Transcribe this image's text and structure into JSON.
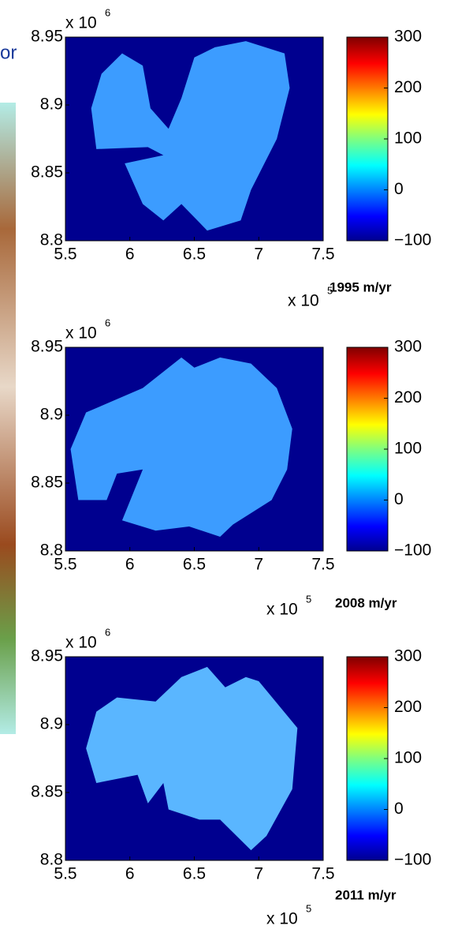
{
  "background": {
    "text": "or"
  },
  "chart_data": [
    {
      "type": "map",
      "xlim": [
        5.5,
        7.5
      ],
      "xticks": [
        5.5,
        6,
        6.5,
        7,
        7.5
      ],
      "ylim": [
        8.8,
        8.95
      ],
      "yticks": [
        8.8,
        8.85,
        8.9,
        8.95
      ],
      "x_multiplier": {
        "base": "x 10",
        "exponent": "5"
      },
      "y_multiplier": {
        "base": "x 10",
        "exponent": "6"
      },
      "colorbar": {
        "lim": [
          -100,
          300
        ],
        "ticks": [
          {
            "value": -100,
            "label": "−100"
          },
          0,
          100,
          200,
          300
        ]
      },
      "annotation": "1995 m/yr"
    },
    {
      "type": "map",
      "xlim": [
        5.5,
        7.5
      ],
      "xticks": [
        5.5,
        6,
        6.5,
        7,
        7.5
      ],
      "ylim": [
        8.8,
        8.95
      ],
      "yticks": [
        8.8,
        8.85,
        8.9,
        8.95
      ],
      "x_multiplier": {
        "base": "x 10",
        "exponent": "5"
      },
      "y_multiplier": {
        "base": "x 10",
        "exponent": "6"
      },
      "colorbar": {
        "lim": [
          -100,
          300
        ],
        "ticks": [
          {
            "value": -100,
            "label": "−100"
          },
          0,
          100,
          200,
          300
        ]
      },
      "annotation": "2008 m/yr"
    },
    {
      "type": "map",
      "xlim": [
        5.5,
        7.5
      ],
      "xticks": [
        5.5,
        6,
        6.5,
        7,
        7.5
      ],
      "ylim": [
        8.8,
        8.95
      ],
      "yticks": [
        8.8,
        8.85,
        8.9,
        8.95
      ],
      "x_multiplier": {
        "base": "x 10",
        "exponent": "5"
      },
      "y_multiplier": {
        "base": "x 10",
        "exponent": "6"
      },
      "colorbar": {
        "lim": [
          -100,
          300
        ],
        "ticks": [
          {
            "value": -100,
            "label": "−100"
          },
          0,
          100,
          200,
          300
        ]
      },
      "annotation": "2011 m/yr"
    }
  ]
}
